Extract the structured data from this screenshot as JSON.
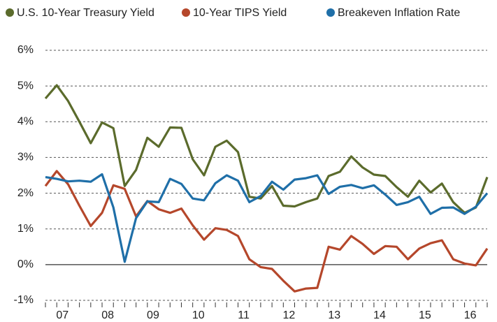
{
  "chart_data": {
    "type": "line",
    "categories": [
      "07",
      null,
      null,
      null,
      "08",
      null,
      null,
      null,
      "09",
      null,
      null,
      null,
      "10",
      null,
      null,
      null,
      "11",
      null,
      null,
      null,
      "12",
      null,
      null,
      null,
      "13",
      null,
      null,
      null,
      "14",
      null,
      null,
      null,
      "15",
      null,
      null,
      null,
      "16",
      null,
      null,
      null
    ],
    "series": [
      {
        "name": "U.S. 10-Year Treasury Yield",
        "color": "#5b6b2c",
        "values": [
          4.65,
          5.02,
          4.58,
          4.0,
          3.4,
          3.98,
          3.82,
          2.2,
          2.65,
          3.55,
          3.3,
          3.84,
          3.83,
          2.95,
          2.5,
          3.3,
          3.47,
          3.15,
          1.9,
          1.85,
          2.2,
          1.65,
          1.63,
          1.75,
          1.85,
          2.48,
          2.6,
          3.03,
          2.72,
          2.52,
          2.48,
          2.17,
          1.9,
          2.35,
          2.02,
          2.27,
          1.75,
          1.45,
          1.6,
          2.45
        ]
      },
      {
        "name": "10-Year TIPS Yield",
        "color": "#b5472b",
        "values": [
          2.2,
          2.62,
          2.25,
          1.65,
          1.08,
          1.45,
          2.22,
          2.12,
          1.35,
          1.78,
          1.55,
          1.45,
          1.57,
          1.1,
          0.7,
          1.02,
          0.97,
          0.8,
          0.15,
          -0.07,
          -0.12,
          -0.45,
          -0.75,
          -0.67,
          -0.65,
          0.5,
          0.42,
          0.8,
          0.58,
          0.3,
          0.52,
          0.5,
          0.15,
          0.45,
          0.6,
          0.68,
          0.15,
          0.03,
          -0.02,
          0.45
        ]
      },
      {
        "name": "Breakeven Inflation Rate",
        "color": "#1f6fa8",
        "values": [
          2.45,
          2.4,
          2.33,
          2.35,
          2.32,
          2.53,
          1.6,
          0.08,
          1.3,
          1.77,
          1.75,
          2.4,
          2.26,
          1.85,
          1.8,
          2.28,
          2.5,
          2.35,
          1.75,
          1.92,
          2.32,
          2.1,
          2.38,
          2.42,
          2.5,
          1.98,
          2.18,
          2.23,
          2.14,
          2.22,
          1.96,
          1.67,
          1.75,
          1.9,
          1.42,
          1.59,
          1.6,
          1.42,
          1.62,
          2.0
        ]
      }
    ],
    "ylim": [
      -1,
      6
    ],
    "yticks": [
      {
        "value": -1,
        "label": "-1%"
      },
      {
        "value": 0,
        "label": "0%"
      },
      {
        "value": 1,
        "label": "1%"
      },
      {
        "value": 2,
        "label": "2%"
      },
      {
        "value": 3,
        "label": "3%"
      },
      {
        "value": 4,
        "label": "4%"
      },
      {
        "value": 5,
        "label": "5%"
      },
      {
        "value": 6,
        "label": "6%"
      }
    ],
    "grid": true,
    "legend": "top"
  }
}
